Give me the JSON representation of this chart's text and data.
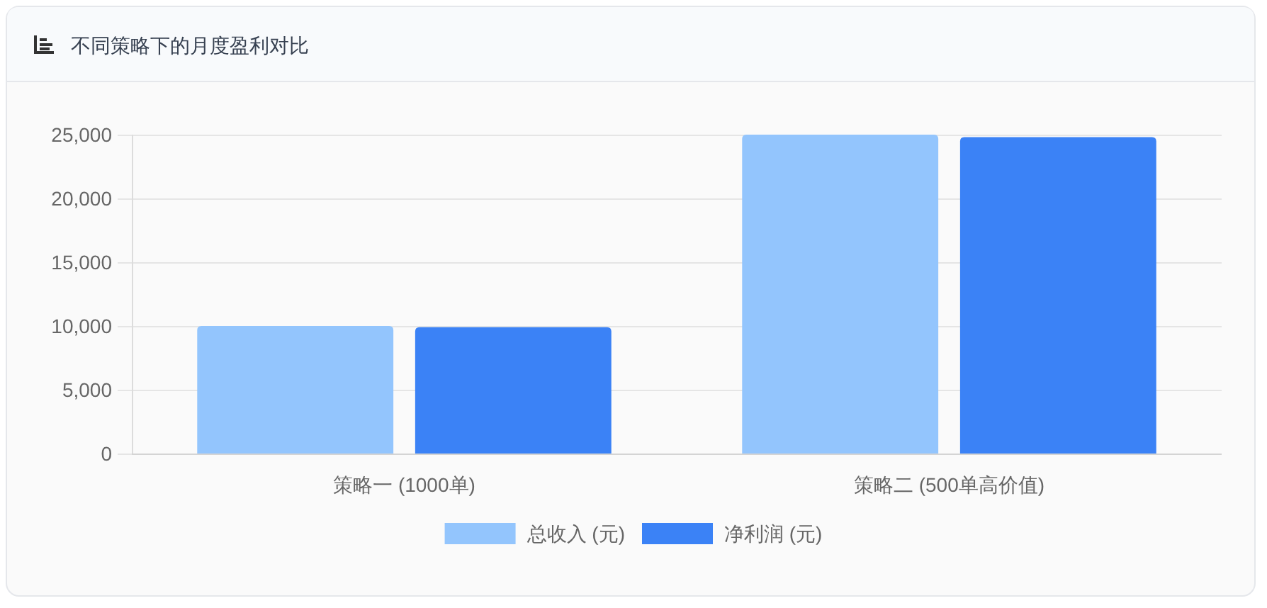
{
  "chart_data": {
    "type": "bar",
    "title": "不同策略下的月度盈利对比",
    "categories": [
      "策略一 (1000单)",
      "策略二 (500单高价值)"
    ],
    "series": [
      {
        "name": "总收入 (元)",
        "color": "#93c5fd",
        "values": [
          10000,
          25000
        ]
      },
      {
        "name": "净利润 (元)",
        "color": "#3b82f6",
        "values": [
          9900,
          24800
        ]
      }
    ],
    "ylim": [
      0,
      25000
    ],
    "yticks": [
      0,
      {
        "value": 5000,
        "label": "5,000"
      },
      {
        "value": 10000,
        "label": "10,000"
      },
      {
        "value": 15000,
        "label": "15,000"
      },
      {
        "value": 20000,
        "label": "20,000"
      },
      {
        "value": 25000,
        "label": "25,000"
      }
    ],
    "grid": "y",
    "legend": "bottom"
  }
}
